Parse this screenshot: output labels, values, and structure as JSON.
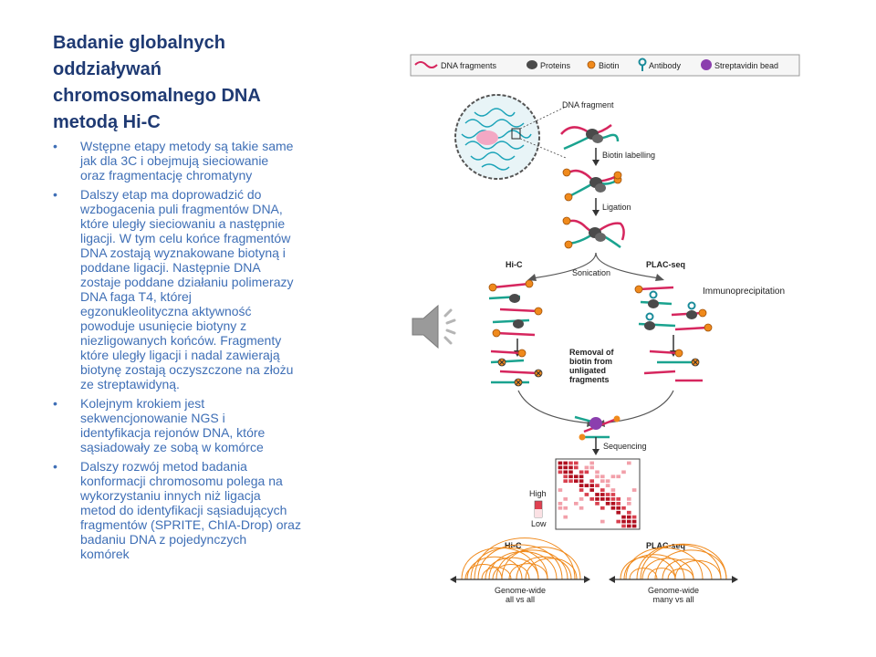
{
  "slide": {
    "title_lines": [
      "Badanie globalnych",
      "oddziaływań",
      "chromosomalnego DNA",
      "metodą Hi-C"
    ],
    "bullets": [
      "Wstępne etapy metody są takie same\njak dla 3C i obejmują sieciowanie\noraz fragmentację chromatyny",
      "Dalszy etap ma doprowadzić do\nwzbogacenia puli fragmentów DNA,\nktóre uległy sieciowaniu a następnie\nligacji. W tym celu końce fragmentów\nDNA zostają wyznakowane biotyną i\npoddane ligacji. Następnie DNA\nzostaje poddane działaniu polimerazy\nDNA faga T4, której\negzonukleolityczna aktywność\npowoduje usunięcie biotyny z\nniezligowanych końców. Fragmenty\nktóre uległy ligacji i nadal zawierają\nbiotynę zostają oczyszczone na złożu\nze streptawidyną.",
      "Kolejnym  krokiem jest\nsekwencjonowanie NGS i\nidentyfikacja rejonów DNA, które\nsąsiadowały ze sobą w komórce",
      "Dalszy rozwój metod badania\nkonformacji chromosomu polega na\nwykorzystaniu innych niż ligacja\nmetod do identyfikacji sąsiadujących\nfragmentów (SPRITE, ChIA-Drop) oraz\nbadaniu DNA z pojedynczych\nkomórek"
    ],
    "bullet_char": "•"
  },
  "figure": {
    "legend": [
      "DNA fragments",
      "Proteins",
      "Biotin",
      "Antibody",
      "Streptavidin bead"
    ],
    "steps": {
      "dna_fragment": "DNA fragment",
      "biotin_labelling": "Biotin labelling",
      "ligation": "Ligation",
      "sonication": "Sonication",
      "immunoprecipitation": "Immunoprecipitation",
      "removal_lines": [
        "Removal of",
        "biotin from",
        "unligated",
        "fragments"
      ],
      "sequencing": "Sequencing"
    },
    "branches": {
      "left": "Hi-C",
      "right": "PLAC-seq"
    },
    "heatmap": {
      "high": "High",
      "low": "Low"
    },
    "bottom": {
      "left_title": "Hi-C",
      "right_title": "PLAC-seq",
      "left_caption": [
        "Genome-wide",
        "all vs all"
      ],
      "right_caption": [
        "Genome-wide",
        "many vs all"
      ]
    },
    "colors": {
      "dna": "#d6265e",
      "dna2": "#1aa38f",
      "protein": "#4a4a4a",
      "biotin": "#f08a1c",
      "antibody": "#1a8b9a",
      "bead": "#8b3fae",
      "arc": "#f08a1c"
    }
  }
}
